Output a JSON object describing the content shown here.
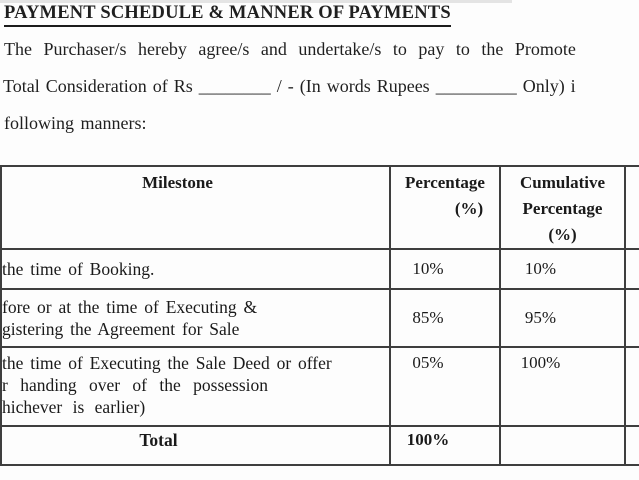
{
  "heading": "PAYMENT SCHEDULE & MANNER OF PAYMENTS",
  "paragraph": {
    "line1": "The Purchaser/s hereby agree/s and undertake/s to pay to the Promote",
    "line2": "Total Consideration of Rs ________ / - (In words Rupees _________ Only) i",
    "line3": "following manners:"
  },
  "table": {
    "headers": {
      "milestone": "Milestone",
      "percentage_line1": "Percentage",
      "percentage_line2": "(%)",
      "cumulative_line1": "Cumulative",
      "cumulative_line2": "Percentage",
      "cumulative_line3": "(%)"
    },
    "rows": [
      {
        "milestone_lines": [
          "the time of Booking."
        ],
        "percentage": "10%",
        "cumulative": "10%"
      },
      {
        "milestone_lines": [
          "fore or at the time of Executing &",
          "gistering the Agreement for Sale"
        ],
        "percentage": "85%",
        "cumulative": "95%"
      },
      {
        "milestone_lines": [
          "the time of Executing the Sale Deed or offer",
          "r handing over of the possession",
          "hichever is earlier)"
        ],
        "percentage": "05%",
        "cumulative": "100%"
      }
    ],
    "total_row": {
      "label": "Total",
      "percentage": "100%",
      "cumulative": ""
    }
  },
  "colors": {
    "background": "#fdfdfd",
    "text": "#1f1f1f",
    "border": "#3e3e3e"
  }
}
